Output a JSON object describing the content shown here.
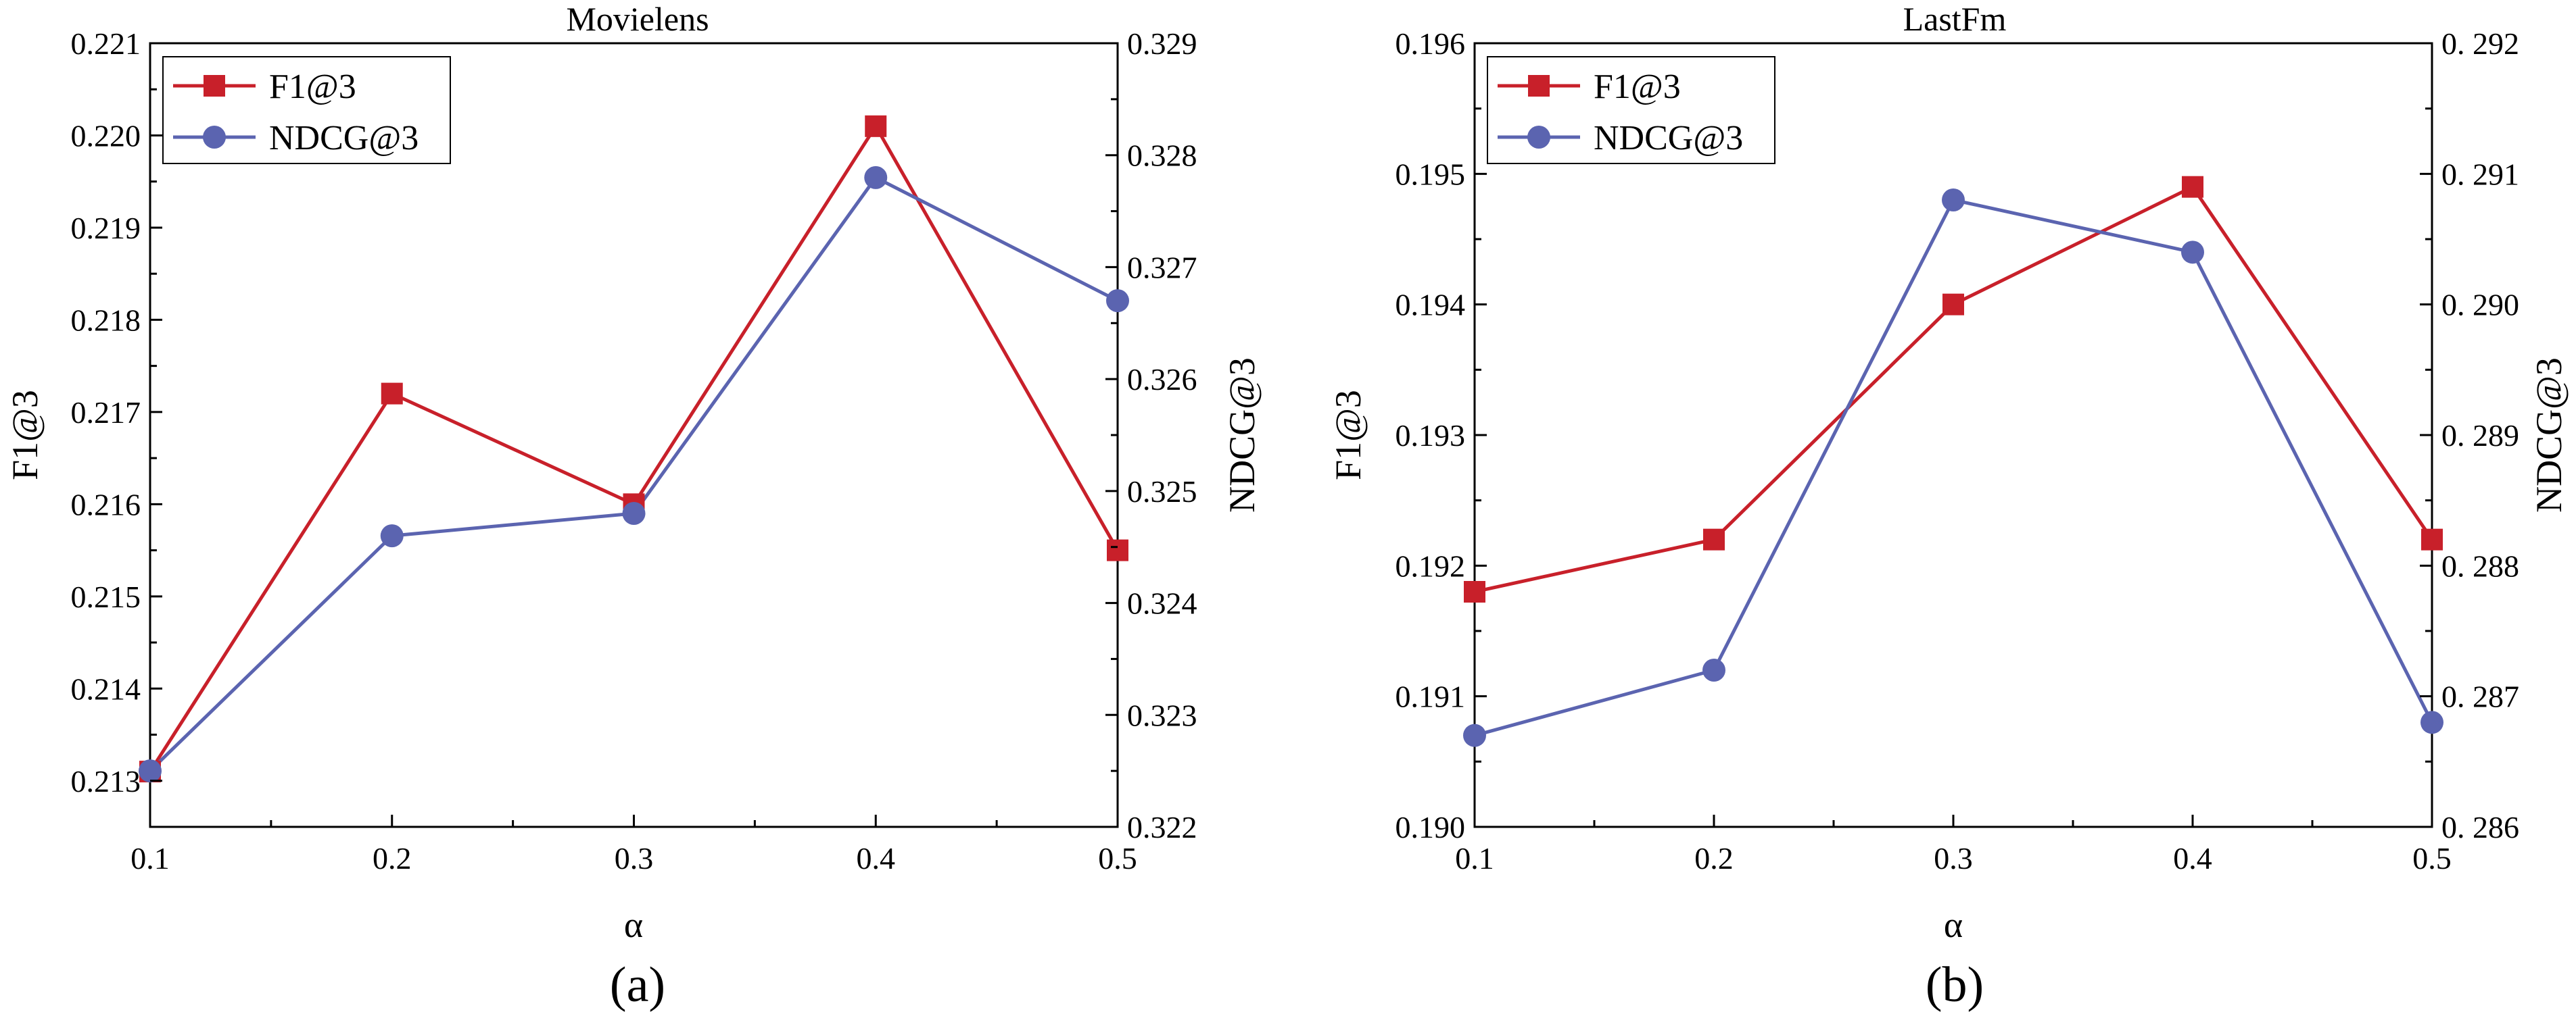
{
  "chart_data": [
    {
      "type": "line",
      "title": "Movielens",
      "caption": "(a)",
      "xlabel": "α",
      "ylabel_left": "F1@3",
      "ylabel_right": "NDCG@3",
      "x": [
        0.1,
        0.2,
        0.3,
        0.4,
        0.5
      ],
      "x_ticks": [
        "0.1",
        "0.2",
        "0.3",
        "0.4",
        "0.5"
      ],
      "xlim": [
        0.1,
        0.5
      ],
      "ylim_left": [
        0.2125,
        0.221
      ],
      "ylim_right": [
        0.322,
        0.329
      ],
      "y_ticks_left": [
        "0.213",
        "0.214",
        "0.215",
        "0.216",
        "0.217",
        "0.218",
        "0.219",
        "0.220",
        "0.221"
      ],
      "y_ticks_right": [
        "0.322",
        "0.323",
        "0.324",
        "0.325",
        "0.326",
        "0.327",
        "0.328",
        "0.329"
      ],
      "grid": false,
      "legend_position": "top-left",
      "series": [
        {
          "name": "F1@3",
          "axis": "left",
          "marker": "square",
          "color": "#c8202a",
          "values": [
            0.2131,
            0.2172,
            0.216,
            0.2201,
            0.2155
          ]
        },
        {
          "name": "NDCG@3",
          "axis": "right",
          "marker": "circle",
          "color": "#5b64b0",
          "values": [
            0.3225,
            0.3246,
            0.3248,
            0.3278,
            0.3267
          ]
        }
      ]
    },
    {
      "type": "line",
      "title": "LastFm",
      "caption": "(b)",
      "xlabel": "α",
      "ylabel_left": "F1@3",
      "ylabel_right": "NDCG@3",
      "x": [
        0.1,
        0.2,
        0.3,
        0.4,
        0.5
      ],
      "x_ticks": [
        "0.1",
        "0.2",
        "0.3",
        "0.4",
        "0.5"
      ],
      "xlim": [
        0.1,
        0.5
      ],
      "ylim_left": [
        0.19,
        0.196
      ],
      "ylim_right": [
        0.286,
        0.292
      ],
      "y_ticks_left": [
        "0.190",
        "0.191",
        "0.192",
        "0.193",
        "0.194",
        "0.195",
        "0.196"
      ],
      "y_ticks_right": [
        "0. 286",
        "0. 287",
        "0. 288",
        "0. 289",
        "0. 290",
        "0. 291",
        "0. 292"
      ],
      "grid": false,
      "legend_position": "top-left",
      "series": [
        {
          "name": "F1@3",
          "axis": "left",
          "marker": "square",
          "color": "#c8202a",
          "values": [
            0.1918,
            0.1922,
            0.194,
            0.1949,
            0.1922
          ]
        },
        {
          "name": "NDCG@3",
          "axis": "right",
          "marker": "circle",
          "color": "#5b64b0",
          "values": [
            0.2867,
            0.2872,
            0.2908,
            0.2904,
            0.2868
          ]
        }
      ]
    }
  ]
}
